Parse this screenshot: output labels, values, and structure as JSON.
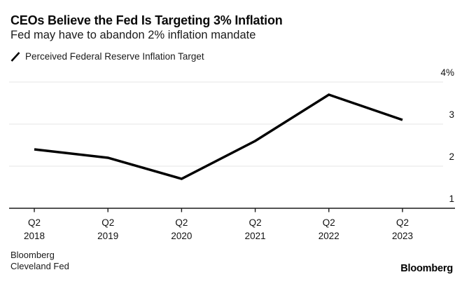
{
  "header": {
    "title": "CEOs Believe the Fed Is Targeting 3% Inflation",
    "subtitle": "Fed may have to abandon 2% inflation mandate"
  },
  "legend": {
    "items": [
      {
        "label": "Perceived Federal Reserve Inflation Target",
        "marker": "slash-line-icon",
        "color": "#000000"
      }
    ]
  },
  "chart_data": {
    "type": "line",
    "title": "CEOs Believe the Fed Is Targeting 3% Inflation",
    "subtitle": "Fed may have to abandon 2% inflation mandate",
    "categories": [
      "Q2 2018",
      "Q2 2019",
      "Q2 2020",
      "Q2 2021",
      "Q2 2022",
      "Q2 2023"
    ],
    "x_tick_labels": [
      [
        "Q2",
        "2018"
      ],
      [
        "Q2",
        "2019"
      ],
      [
        "Q2",
        "2020"
      ],
      [
        "Q2",
        "2021"
      ],
      [
        "Q2",
        "2022"
      ],
      [
        "Q2",
        "2023"
      ]
    ],
    "series": [
      {
        "name": "Perceived Federal Reserve Inflation Target",
        "values": [
          2.4,
          2.2,
          1.7,
          2.6,
          3.7,
          3.1
        ],
        "color": "#000000",
        "line_width": 3.5
      }
    ],
    "xlabel": "",
    "ylabel": "",
    "ylim": [
      1,
      4
    ],
    "y_ticks": [
      1,
      2,
      3,
      4
    ],
    "y_tick_labels": [
      "1",
      "2",
      "3",
      "4%"
    ],
    "grid": "horizontal",
    "legend_position": "top-left",
    "y_axis_side": "right"
  },
  "footer": {
    "source_lines": [
      "Bloomberg",
      "Cleveland Fed"
    ],
    "brand": "Bloomberg"
  },
  "colors": {
    "background": "#ffffff",
    "text": "#111111",
    "gridline": "#e4e4e4",
    "axis": "#1a1a1a",
    "series_line": "#000000"
  }
}
